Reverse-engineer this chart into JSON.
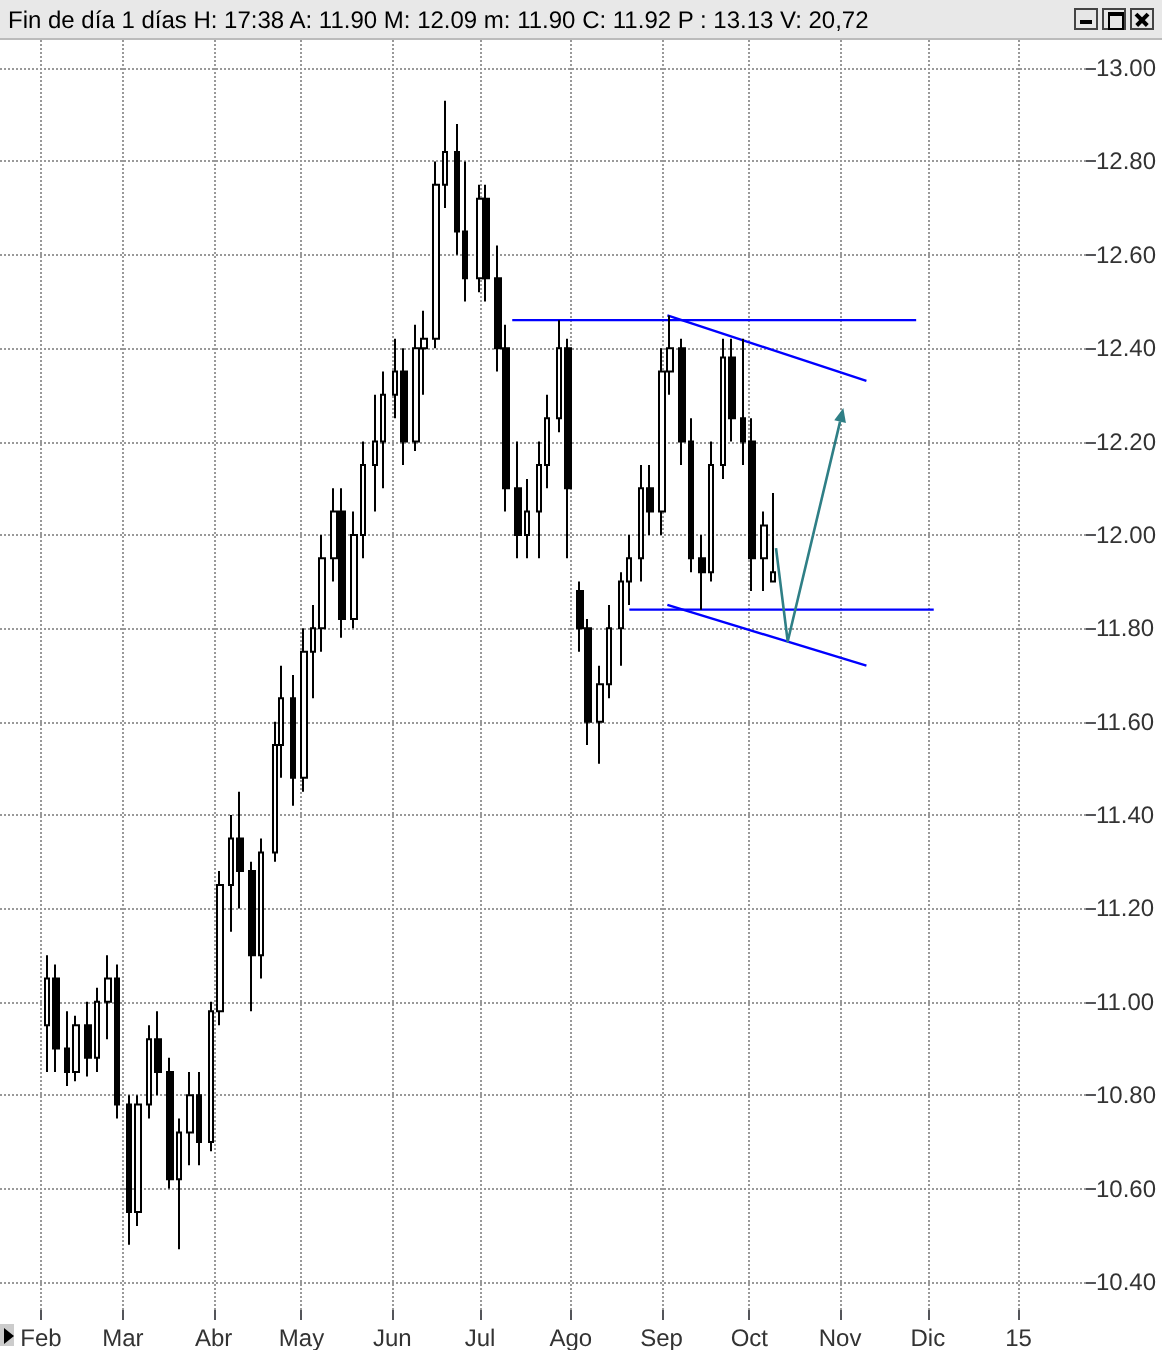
{
  "chart_data": {
    "type": "candlestick",
    "title": "Fin de día 1 días H: 17:38 A: 11.90 M: 12.09 m: 11.90 C: 11.92 P : 13.13 V: 20,72",
    "color": "#000000",
    "x": [
      "2014-02-03",
      "2014-02-06",
      "2014-02-10",
      "2014-02-13",
      "2014-02-17",
      "2014-02-20",
      "2014-02-24",
      "2014-02-27",
      "2014-03-03",
      "2014-03-06",
      "2014-03-10",
      "2014-03-13",
      "2014-03-17",
      "2014-03-20",
      "2014-03-24",
      "2014-03-27",
      "2014-03-31",
      "2014-04-03",
      "2014-04-07",
      "2014-04-10",
      "2014-04-14",
      "2014-04-17",
      "2014-04-22",
      "2014-04-24",
      "2014-04-28",
      "2014-05-02",
      "2014-05-05",
      "2014-05-08",
      "2014-05-12",
      "2014-05-15",
      "2014-05-19",
      "2014-05-22",
      "2014-05-26",
      "2014-05-29",
      "2014-06-02",
      "2014-06-05",
      "2014-06-09",
      "2014-06-12",
      "2014-06-16",
      "2014-06-19",
      "2014-06-23",
      "2014-06-26",
      "2014-07-01",
      "2014-07-03",
      "2014-07-07",
      "2014-07-10",
      "2014-07-14",
      "2014-07-17",
      "2014-07-21",
      "2014-07-24",
      "2014-07-28",
      "2014-07-31",
      "2014-08-04",
      "2014-08-07",
      "2014-08-11",
      "2014-08-14",
      "2014-08-18",
      "2014-08-21",
      "2014-08-25",
      "2014-08-28",
      "2014-09-01",
      "2014-09-04",
      "2014-09-08",
      "2014-09-11",
      "2014-09-15",
      "2014-09-18",
      "2014-09-22",
      "2014-09-25",
      "2014-09-29",
      "2014-10-02",
      "2014-10-06",
      "2014-10-09"
    ],
    "ohlc": [
      [
        10.95,
        11.1,
        10.85,
        11.05
      ],
      [
        11.05,
        11.08,
        10.85,
        10.9
      ],
      [
        10.9,
        10.98,
        10.82,
        10.85
      ],
      [
        10.85,
        10.97,
        10.83,
        10.95
      ],
      [
        10.95,
        11.0,
        10.84,
        10.88
      ],
      [
        10.88,
        11.03,
        10.85,
        11.0
      ],
      [
        11.0,
        11.1,
        10.92,
        11.05
      ],
      [
        11.05,
        11.08,
        10.75,
        10.78
      ],
      [
        10.78,
        10.8,
        10.48,
        10.55
      ],
      [
        10.55,
        10.8,
        10.52,
        10.78
      ],
      [
        10.78,
        10.95,
        10.75,
        10.92
      ],
      [
        10.92,
        10.98,
        10.8,
        10.85
      ],
      [
        10.85,
        10.88,
        10.6,
        10.62
      ],
      [
        10.62,
        10.75,
        10.47,
        10.72
      ],
      [
        10.72,
        10.85,
        10.65,
        10.8
      ],
      [
        10.8,
        10.85,
        10.65,
        10.7
      ],
      [
        10.7,
        11.0,
        10.68,
        10.98
      ],
      [
        10.98,
        11.28,
        10.95,
        11.25
      ],
      [
        11.25,
        11.4,
        11.15,
        11.35
      ],
      [
        11.35,
        11.45,
        11.2,
        11.28
      ],
      [
        11.28,
        11.3,
        10.98,
        11.1
      ],
      [
        11.1,
        11.35,
        11.05,
        11.32
      ],
      [
        11.32,
        11.6,
        11.3,
        11.55
      ],
      [
        11.55,
        11.72,
        11.48,
        11.65
      ],
      [
        11.65,
        11.7,
        11.42,
        11.48
      ],
      [
        11.48,
        11.8,
        11.45,
        11.75
      ],
      [
        11.75,
        11.85,
        11.65,
        11.8
      ],
      [
        11.8,
        12.0,
        11.75,
        11.95
      ],
      [
        11.95,
        12.1,
        11.9,
        12.05
      ],
      [
        12.05,
        12.1,
        11.78,
        11.82
      ],
      [
        11.82,
        12.05,
        11.8,
        12.0
      ],
      [
        12.0,
        12.2,
        11.95,
        12.15
      ],
      [
        12.15,
        12.3,
        12.05,
        12.2
      ],
      [
        12.2,
        12.35,
        12.1,
        12.3
      ],
      [
        12.3,
        12.42,
        12.25,
        12.35
      ],
      [
        12.35,
        12.4,
        12.15,
        12.2
      ],
      [
        12.2,
        12.45,
        12.18,
        12.4
      ],
      [
        12.4,
        12.48,
        12.3,
        12.42
      ],
      [
        12.42,
        12.8,
        12.4,
        12.75
      ],
      [
        12.75,
        12.93,
        12.7,
        12.82
      ],
      [
        12.82,
        12.88,
        12.6,
        12.65
      ],
      [
        12.65,
        12.8,
        12.5,
        12.55
      ],
      [
        12.55,
        12.75,
        12.52,
        12.72
      ],
      [
        12.72,
        12.75,
        12.5,
        12.55
      ],
      [
        12.55,
        12.62,
        12.35,
        12.4
      ],
      [
        12.4,
        12.45,
        12.05,
        12.1
      ],
      [
        12.1,
        12.2,
        11.95,
        12.0
      ],
      [
        12.0,
        12.12,
        11.95,
        12.05
      ],
      [
        12.05,
        12.2,
        11.95,
        12.15
      ],
      [
        12.15,
        12.3,
        12.1,
        12.25
      ],
      [
        12.25,
        12.46,
        12.22,
        12.4
      ],
      [
        12.4,
        12.42,
        11.95,
        12.1
      ],
      [
        11.88,
        11.9,
        11.75,
        11.8
      ],
      [
        11.8,
        11.82,
        11.55,
        11.6
      ],
      [
        11.6,
        11.72,
        11.51,
        11.68
      ],
      [
        11.68,
        11.85,
        11.65,
        11.8
      ],
      [
        11.8,
        11.92,
        11.72,
        11.9
      ],
      [
        11.9,
        12.0,
        11.85,
        11.95
      ],
      [
        11.95,
        12.15,
        11.9,
        12.1
      ],
      [
        12.1,
        12.15,
        12.0,
        12.05
      ],
      [
        12.05,
        12.4,
        12.0,
        12.35
      ],
      [
        12.35,
        12.47,
        12.3,
        12.4
      ],
      [
        12.4,
        12.42,
        12.15,
        12.2
      ],
      [
        12.2,
        12.25,
        11.92,
        11.95
      ],
      [
        11.95,
        12.0,
        11.84,
        11.92
      ],
      [
        11.92,
        12.2,
        11.9,
        12.15
      ],
      [
        12.15,
        12.42,
        12.12,
        12.38
      ],
      [
        12.38,
        12.42,
        12.2,
        12.25
      ],
      [
        12.25,
        12.42,
        12.15,
        12.2
      ],
      [
        12.2,
        12.25,
        11.88,
        11.95
      ],
      [
        11.95,
        12.05,
        11.88,
        12.02
      ],
      [
        11.9,
        12.09,
        11.9,
        11.92
      ]
    ],
    "series": [
      {
        "type": "line",
        "color": "#0000ff",
        "x": [
          "2014-07-12",
          "2014-11-27"
        ],
        "values": [
          12.46,
          12.46
        ]
      },
      {
        "type": "line",
        "color": "#0000ff",
        "x": [
          "2014-09-03",
          "2014-11-10"
        ],
        "values": [
          12.47,
          12.33
        ]
      },
      {
        "type": "line",
        "color": "#0000ff",
        "x": [
          "2014-08-21",
          "2014-12-03"
        ],
        "values": [
          11.84,
          11.84
        ]
      },
      {
        "type": "line",
        "color": "#0000ff",
        "x": [
          "2014-09-03",
          "2014-11-10"
        ],
        "values": [
          11.85,
          11.72
        ]
      }
    ],
    "xlim": [
      "2014-01-18",
      "2015-01-24"
    ],
    "xticks": [
      {
        "value": "2014-02-01",
        "label": "Feb"
      },
      {
        "value": "2014-03-01",
        "label": "Mar"
      },
      {
        "value": "2014-04-01",
        "label": "Abr"
      },
      {
        "value": "2014-05-01",
        "label": "May"
      },
      {
        "value": "2014-06-01",
        "label": "Jun"
      },
      {
        "value": "2014-07-01",
        "label": "Jul"
      },
      {
        "value": "2014-08-01",
        "label": "Ago"
      },
      {
        "value": "2014-09-01",
        "label": "Sep"
      },
      {
        "value": "2014-10-01",
        "label": "Oct"
      },
      {
        "value": "2014-11-01",
        "label": "Nov"
      },
      {
        "value": "2014-12-01",
        "label": "Dic"
      },
      {
        "value": "2015-01-01",
        "label": "15"
      }
    ],
    "ylim": [
      10.34,
      13.06
    ],
    "yticks": [
      {
        "value": 10.4,
        "label": "10.40"
      },
      {
        "value": 10.6,
        "label": "10.60"
      },
      {
        "value": 10.8,
        "label": "10.80"
      },
      {
        "value": 11.0,
        "label": "11.00"
      },
      {
        "value": 11.2,
        "label": "11.20"
      },
      {
        "value": 11.4,
        "label": "11.40"
      },
      {
        "value": 11.6,
        "label": "11.60"
      },
      {
        "value": 11.8,
        "label": "11.80"
      },
      {
        "value": 12.0,
        "label": "12.00"
      },
      {
        "value": 12.2,
        "label": "12.20"
      },
      {
        "value": 12.4,
        "label": "12.40"
      },
      {
        "value": 12.6,
        "label": "12.60"
      },
      {
        "value": 12.8,
        "label": "12.80"
      },
      {
        "value": 13.0,
        "label": "13.00"
      }
    ],
    "grid": true,
    "line_style": "solid",
    "marker": "none"
  }
}
